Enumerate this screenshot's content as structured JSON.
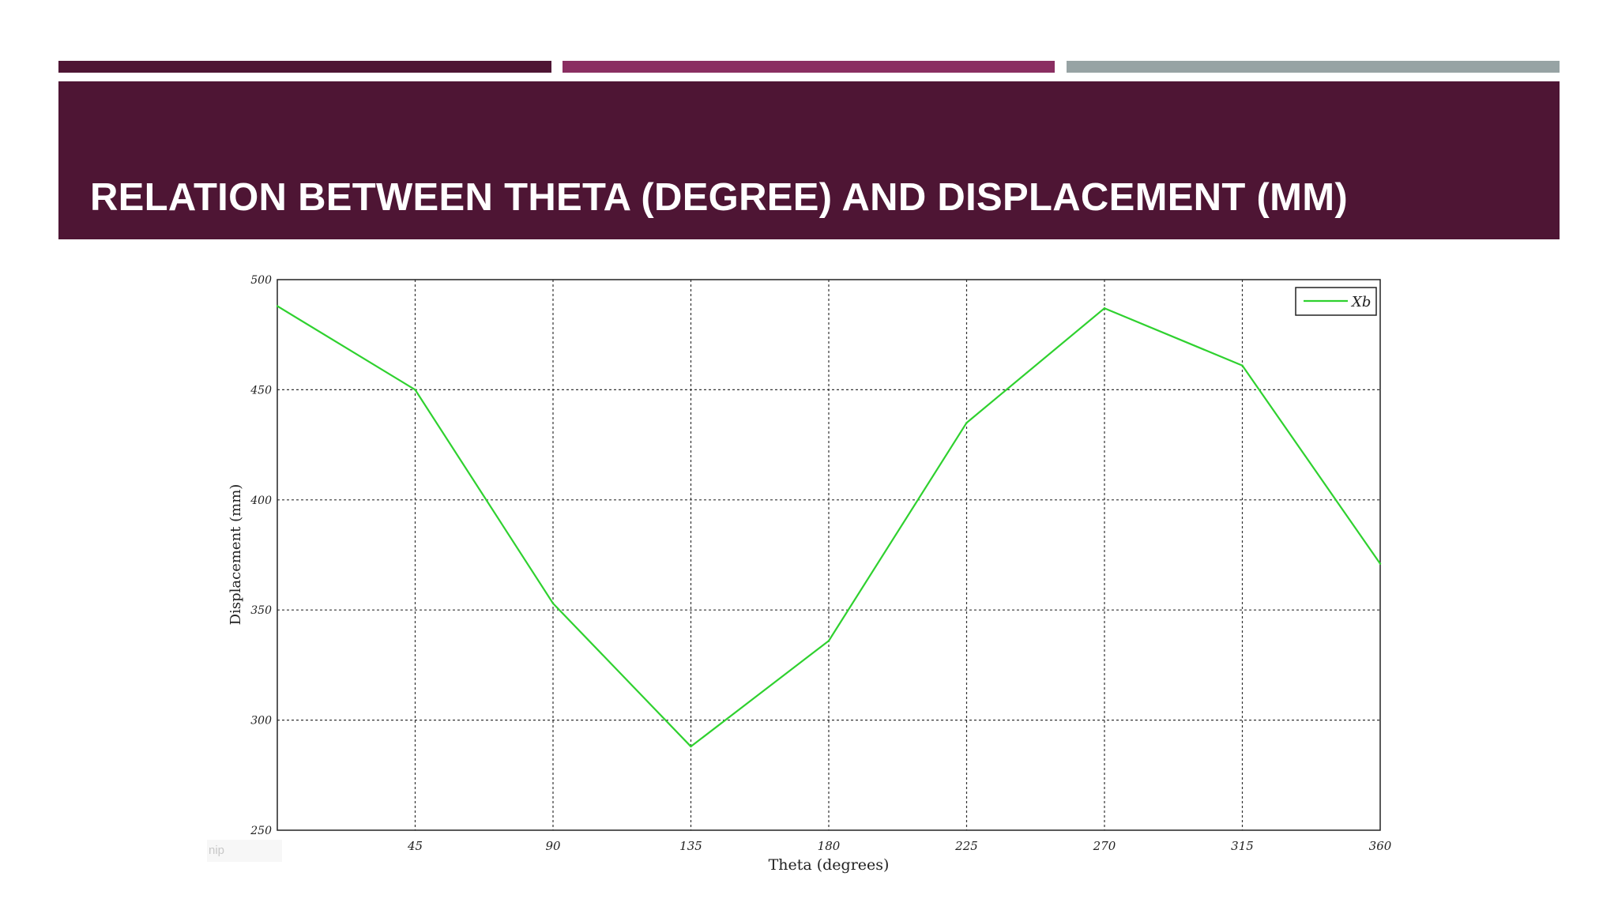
{
  "slide": {
    "title": "RELATION BETWEEN THETA (DEGREE) AND DISPLACEMENT (MM)",
    "background": "#ffffff",
    "header_color": "#4e1534",
    "title_color": "#ffffff",
    "accent_colors": [
      "#4e1534",
      "#8a2e61",
      "#97a3a4"
    ],
    "snip_label": "nip"
  },
  "chart_data": {
    "type": "line",
    "title": "",
    "xlabel": "Theta (degrees)",
    "ylabel": "Displacement (mm)",
    "x": [
      0,
      45,
      90,
      135,
      180,
      225,
      270,
      315,
      360
    ],
    "series": [
      {
        "name": "Xb",
        "color": "#2fd12f",
        "values": [
          488,
          450,
          353,
          288,
          336,
          435,
          487,
          461,
          371
        ]
      }
    ],
    "xlim": [
      0,
      360
    ],
    "ylim": [
      250,
      500
    ],
    "xticks": [
      0,
      45,
      90,
      135,
      180,
      225,
      270,
      315,
      360
    ],
    "yticks": [
      250,
      300,
      350,
      400,
      450,
      500
    ],
    "grid": true,
    "legend": "top-right"
  }
}
